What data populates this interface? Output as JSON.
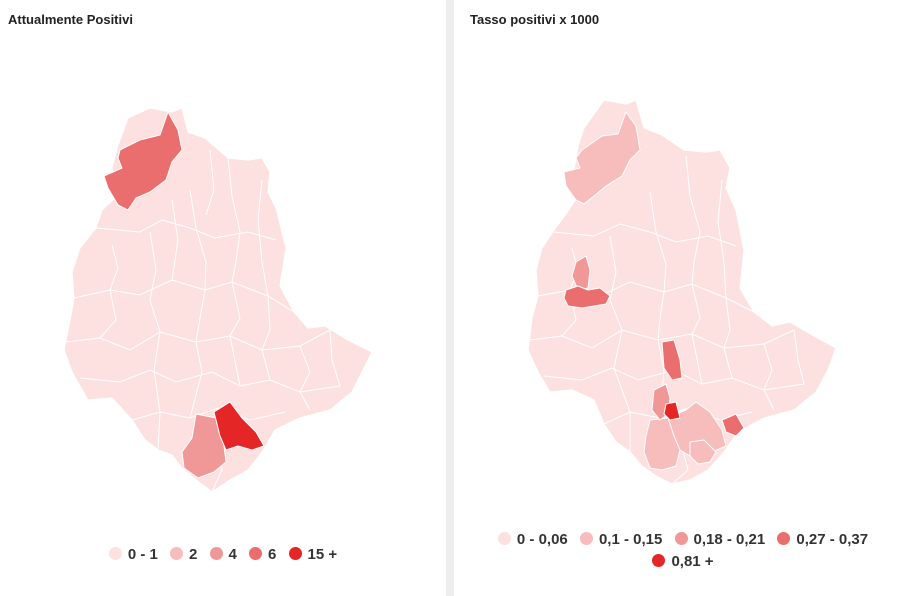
{
  "left_panel": {
    "title": "Attualmente Positivi",
    "legend": [
      {
        "label": "0 - 1",
        "color": "#fde0e0"
      },
      {
        "label": "2",
        "color": "#f7bcbc"
      },
      {
        "label": "4",
        "color": "#f09898"
      },
      {
        "label": "6",
        "color": "#ea6e6e"
      },
      {
        "label": "15 +",
        "color": "#e52626"
      }
    ]
  },
  "right_panel": {
    "title": "Tasso positivi x 1000",
    "legend": [
      {
        "label": "0 - 0,06",
        "color": "#fde0e0"
      },
      {
        "label": "0,1 - 0,15",
        "color": "#f7bcbc"
      },
      {
        "label": "0,18 - 0,21",
        "color": "#f09898"
      },
      {
        "label": "0,27 - 0,37",
        "color": "#ea6e6e"
      },
      {
        "label": "0,81 +",
        "color": "#e52626"
      }
    ]
  },
  "map_colors": {
    "base": "#fde0e0",
    "class_2": "#f7bcbc",
    "class_3": "#f09898",
    "class_4": "#ea6e6e",
    "class_5": "#e52626"
  }
}
